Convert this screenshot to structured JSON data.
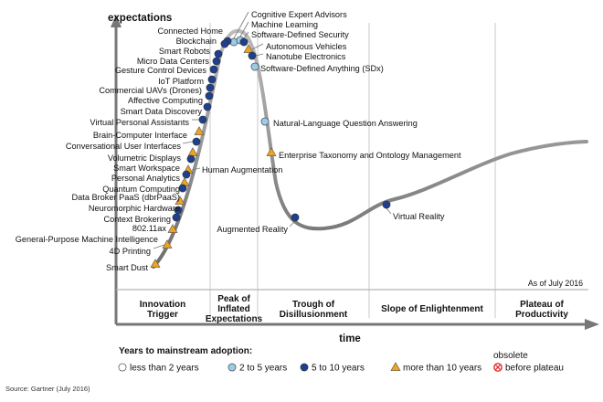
{
  "axis": {
    "y_label": "expectations",
    "x_label": "time"
  },
  "as_of": "As of July 2016",
  "phases": [
    {
      "lines": [
        "Innovation",
        "Trigger"
      ]
    },
    {
      "lines": [
        "Peak of",
        "Inflated",
        "Expectations"
      ]
    },
    {
      "lines": [
        "Trough of",
        "Disillusionment"
      ]
    },
    {
      "lines": [
        "Slope of Enlightenment"
      ]
    },
    {
      "lines": [
        "Plateau of",
        "Productivity"
      ]
    }
  ],
  "legend": {
    "title": "Years to mainstream adoption:",
    "items": [
      {
        "label": "less than 2 years",
        "marker": "circle",
        "color": "#ffffff"
      },
      {
        "label": "2 to 5 years",
        "marker": "circle",
        "color": "#9ccbe8"
      },
      {
        "label": "5 to 10 years",
        "marker": "circle",
        "color": "#1f3f8f"
      },
      {
        "label": "more than 10 years",
        "marker": "triangle",
        "color": "#f0a31c"
      },
      {
        "label": "obsolete before plateau",
        "lines": [
          "obsolete",
          "before plateau"
        ],
        "marker": "obsolete",
        "color": "#e03030"
      }
    ]
  },
  "source": "Source: Gartner (July 2016)",
  "technologies": [
    {
      "name": "Cognitive Expert Advisors",
      "category": "2 to 5 years"
    },
    {
      "name": "Machine Learning",
      "category": "2 to 5 years"
    },
    {
      "name": "Software-Defined Security",
      "category": "5 to 10 years"
    },
    {
      "name": "Connected Home",
      "category": "5 to 10 years"
    },
    {
      "name": "Blockchain",
      "category": "5 to 10 years"
    },
    {
      "name": "Autonomous Vehicles",
      "category": "more than 10 years"
    },
    {
      "name": "Nanotube Electronics",
      "category": "5 to 10 years"
    },
    {
      "name": "Software-Defined Anything (SDx)",
      "category": "2 to 5 years"
    },
    {
      "name": "Smart Robots",
      "category": "5 to 10 years"
    },
    {
      "name": "Micro Data Centers",
      "category": "5 to 10 years"
    },
    {
      "name": "Gesture Control Devices",
      "category": "5 to 10 years"
    },
    {
      "name": "IoT Platform",
      "category": "5 to 10 years"
    },
    {
      "name": "Commercial UAVs (Drones)",
      "category": "5 to 10 years"
    },
    {
      "name": "Affective Computing",
      "category": "5 to 10 years"
    },
    {
      "name": "Smart Data Discovery",
      "category": "5 to 10 years"
    },
    {
      "name": "Virtual Personal Assistants",
      "category": "5 to 10 years"
    },
    {
      "name": "Natural-Language Question Answering",
      "category": "2 to 5 years"
    },
    {
      "name": "Brain-Computer Interface",
      "category": "more than 10 years"
    },
    {
      "name": "Conversational User Interfaces",
      "category": "5 to 10 years"
    },
    {
      "name": "Enterprise Taxonomy and Ontology Management",
      "category": "more than 10 years"
    },
    {
      "name": "Volumetric Displays",
      "category": "more than 10 years"
    },
    {
      "name": "Smart Workspace",
      "category": "5 to 10 years"
    },
    {
      "name": "Human Augmentation",
      "category": "more than 10 years"
    },
    {
      "name": "Personal Analytics",
      "category": "5 to 10 years"
    },
    {
      "name": "Quantum Computing",
      "category": "more than 10 years"
    },
    {
      "name": "Data Broker PaaS (dbrPaaS)",
      "category": "5 to 10 years"
    },
    {
      "name": "Neuromorphic Hardware",
      "category": "more than 10 years"
    },
    {
      "name": "Context Brokering",
      "category": "5 to 10 years"
    },
    {
      "name": "802.11ax",
      "category": "5 to 10 years"
    },
    {
      "name": "Virtual Reality",
      "category": "5 to 10 years"
    },
    {
      "name": "General-Purpose Machine Intelligence",
      "category": "more than 10 years"
    },
    {
      "name": "Augmented Reality",
      "category": "5 to 10 years"
    },
    {
      "name": "4D Printing",
      "category": "more than 10 years"
    },
    {
      "name": "Smart Dust",
      "category": "more than 10 years"
    }
  ]
}
